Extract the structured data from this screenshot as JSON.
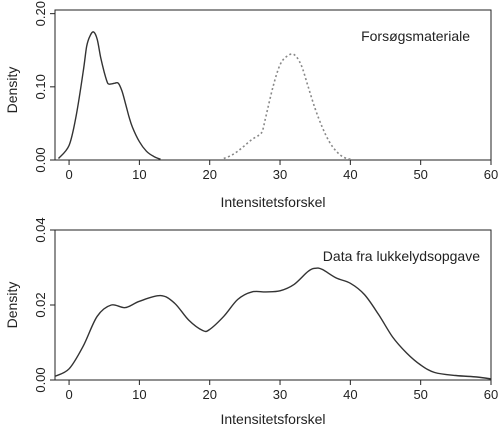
{
  "chart_data": [
    {
      "type": "line",
      "annotation": "Forsøgsmateriale",
      "xlabel": "Intensitetsforskel",
      "ylabel": "Density",
      "xlim": [
        -2,
        60
      ],
      "ylim": [
        0,
        0.205
      ],
      "xticks": [
        "0",
        "10",
        "20",
        "30",
        "40",
        "50",
        "60"
      ],
      "yticks": [
        "0.00",
        "0.10",
        "0.20"
      ],
      "series": [
        {
          "style": "solid",
          "x": [
            -1.5,
            0,
            1,
            2,
            2.5,
            3,
            3.5,
            4,
            4.5,
            5,
            5.5,
            6,
            6.5,
            7,
            7.5,
            8,
            8.5,
            9,
            10,
            11,
            12,
            13
          ],
          "y": [
            0.002,
            0.02,
            0.06,
            0.12,
            0.155,
            0.17,
            0.175,
            0.165,
            0.14,
            0.12,
            0.105,
            0.104,
            0.105,
            0.105,
            0.095,
            0.078,
            0.06,
            0.045,
            0.025,
            0.012,
            0.005,
            0.001
          ]
        },
        {
          "style": "dotted",
          "x": [
            22,
            23,
            24,
            25,
            26,
            27,
            27.5,
            28,
            29,
            30,
            31,
            32,
            33,
            34,
            35,
            36,
            37,
            38,
            39,
            40
          ],
          "y": [
            0.002,
            0.006,
            0.012,
            0.02,
            0.028,
            0.034,
            0.04,
            0.06,
            0.1,
            0.13,
            0.142,
            0.144,
            0.13,
            0.1,
            0.07,
            0.045,
            0.025,
            0.012,
            0.004,
            0.001
          ]
        }
      ]
    },
    {
      "type": "line",
      "annotation": "Data fra lukkelydsopgave",
      "xlabel": "Intensitetsforskel",
      "ylabel": "Density",
      "xlim": [
        -2,
        60
      ],
      "ylim": [
        0,
        0.04
      ],
      "xticks": [
        "0",
        "10",
        "20",
        "30",
        "40",
        "50",
        "60"
      ],
      "yticks": [
        "0.00",
        "0.02",
        "0.04"
      ],
      "series": [
        {
          "style": "solid",
          "x": [
            -2,
            0,
            2,
            4,
            6,
            8,
            10,
            13,
            15,
            17,
            19,
            20,
            22,
            24,
            26,
            28,
            30,
            32,
            34,
            35,
            36,
            38,
            40,
            42,
            44,
            46,
            48,
            50,
            52,
            55,
            58,
            60
          ],
          "y": [
            0.001,
            0.003,
            0.009,
            0.017,
            0.02,
            0.0193,
            0.021,
            0.0225,
            0.0205,
            0.016,
            0.0132,
            0.0135,
            0.017,
            0.0215,
            0.0235,
            0.0235,
            0.0238,
            0.0255,
            0.029,
            0.0298,
            0.0295,
            0.0272,
            0.0258,
            0.0228,
            0.0175,
            0.0115,
            0.0072,
            0.004,
            0.002,
            0.0012,
            0.0008,
            0.0003
          ]
        }
      ]
    }
  ]
}
